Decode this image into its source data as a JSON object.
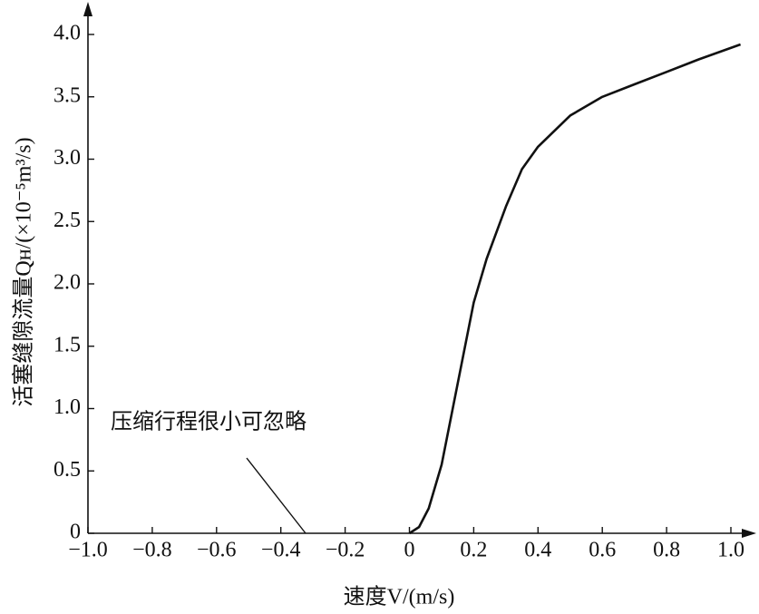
{
  "chart_data": {
    "type": "line",
    "x_label": "速度V/(m/s)",
    "y_label": "活塞缝隙流量Qʜ/(×10⁻⁵m³/s)",
    "annotation": "压缩行程很小可忽略",
    "xlim": [
      -1.0,
      1.0
    ],
    "ylim": [
      0,
      4.0
    ],
    "xticks": [
      {
        "value": -1.0,
        "label": "−1.0"
      },
      {
        "value": -0.8,
        "label": "−0.8"
      },
      {
        "value": -0.6,
        "label": "−0.6"
      },
      {
        "value": -0.4,
        "label": "−0.4"
      },
      {
        "value": -0.2,
        "label": "−0.2"
      },
      0,
      0.2,
      0.4,
      0.6,
      0.8,
      {
        "value": 1.0,
        "label": "1.0"
      }
    ],
    "yticks": [
      0,
      0.5,
      {
        "value": 1.0,
        "label": "1.0"
      },
      1.5,
      {
        "value": 2.0,
        "label": "2.0"
      },
      2.5,
      {
        "value": 3.0,
        "label": "3.0"
      },
      3.5,
      {
        "value": 4.0,
        "label": "4.0"
      }
    ],
    "series": [
      {
        "color": "#111111",
        "x": [
          0,
          0.03,
          0.06,
          0.1,
          0.15,
          0.2,
          0.24,
          0.3,
          0.35,
          0.4,
          0.5,
          0.6,
          0.7,
          0.8,
          0.9,
          1.03
        ],
        "values": [
          0,
          0.05,
          0.2,
          0.55,
          1.2,
          1.85,
          2.2,
          2.62,
          2.92,
          3.1,
          3.35,
          3.5,
          3.6,
          3.7,
          3.8,
          3.92
        ]
      }
    ]
  }
}
